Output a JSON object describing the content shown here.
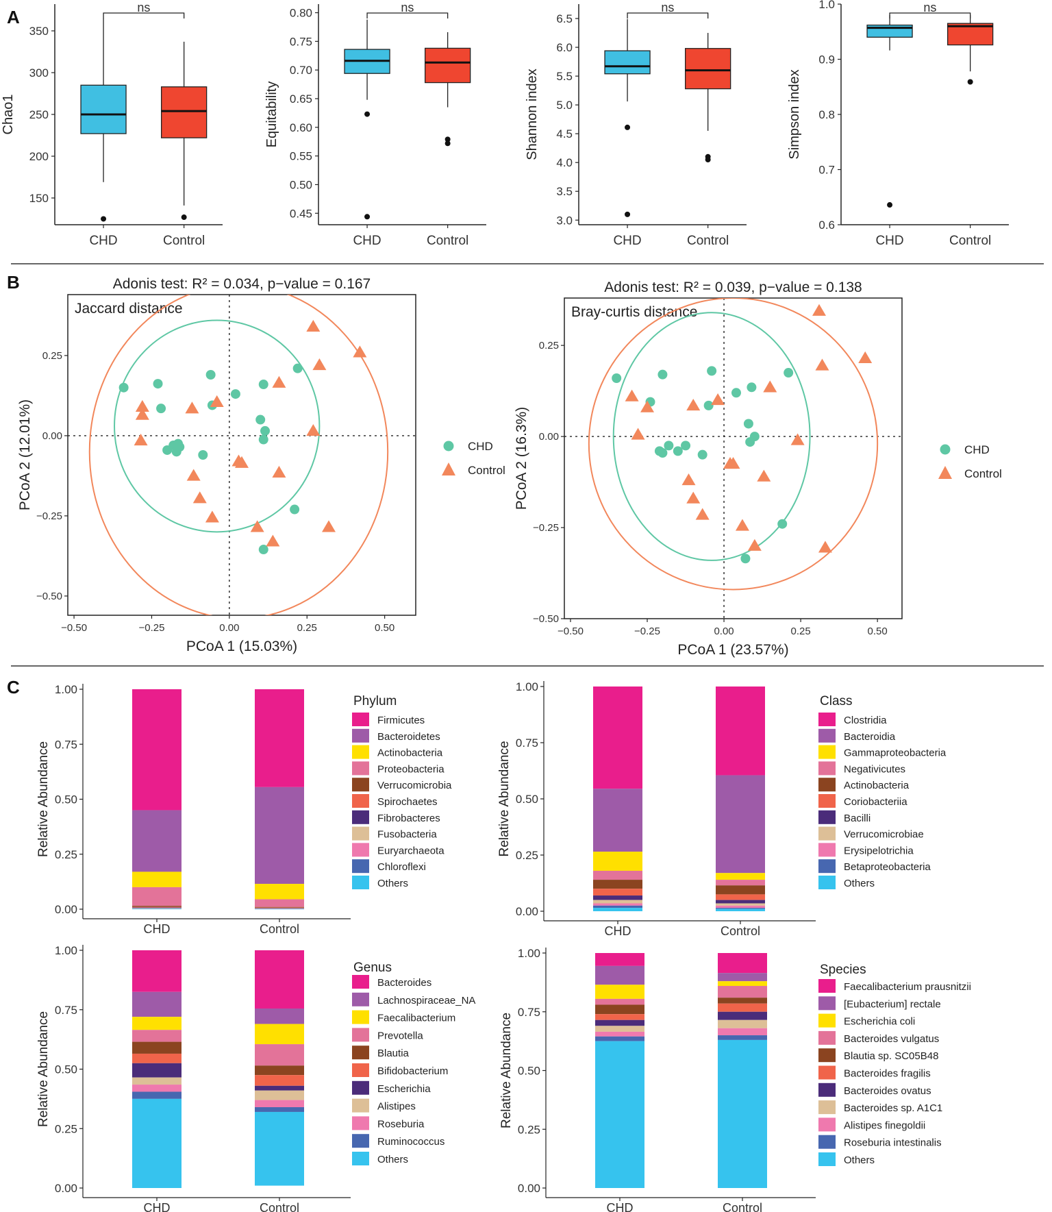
{
  "panels": {
    "a": "A",
    "b": "B",
    "c": "C"
  },
  "colors": {
    "chd_box": "#40BFE2",
    "control_box": "#EF4630",
    "chd_point": "#5EC7A4",
    "control_point": "#F2875B",
    "chd_ellipse": "#5EC7A4",
    "control_ellipse": "#F2875B"
  },
  "chart_data": [
    {
      "id": "chao1",
      "type": "box",
      "ylabel": "Chao1",
      "categories": [
        "CHD",
        "Control"
      ],
      "ylim": [
        118,
        382
      ],
      "yticks": [
        150,
        200,
        250,
        300,
        350
      ],
      "significance": "ns",
      "boxes": [
        {
          "group": "CHD",
          "min": 169,
          "q1": 227,
          "median": 250,
          "q3": 285,
          "max": 365,
          "outliers": [
            125
          ]
        },
        {
          "group": "Control",
          "min": 141,
          "q1": 222,
          "median": 254,
          "q3": 283,
          "max": 337,
          "outliers": [
            127
          ]
        }
      ]
    },
    {
      "id": "equitability",
      "type": "box",
      "ylabel": "Equitability",
      "categories": [
        "CHD",
        "Control"
      ],
      "ylim": [
        0.43,
        0.815
      ],
      "yticks": [
        0.45,
        0.5,
        0.55,
        0.6,
        0.65,
        0.7,
        0.75,
        0.8
      ],
      "significance": "ns",
      "boxes": [
        {
          "group": "CHD",
          "min": 0.648,
          "q1": 0.694,
          "median": 0.716,
          "q3": 0.736,
          "max": 0.788,
          "outliers": [
            0.623,
            0.444
          ]
        },
        {
          "group": "Control",
          "min": 0.635,
          "q1": 0.678,
          "median": 0.713,
          "q3": 0.738,
          "max": 0.766,
          "outliers": [
            0.579,
            0.572
          ]
        }
      ]
    },
    {
      "id": "shannon",
      "type": "box",
      "ylabel": "Shannon index",
      "categories": [
        "CHD",
        "Control"
      ],
      "ylim": [
        2.92,
        6.75
      ],
      "yticks": [
        3.0,
        3.5,
        4.0,
        4.5,
        5.0,
        5.5,
        6.0,
        6.5
      ],
      "significance": "ns",
      "boxes": [
        {
          "group": "CHD",
          "min": 5.06,
          "q1": 5.54,
          "median": 5.67,
          "q3": 5.94,
          "max": 6.49,
          "outliers": [
            4.61,
            3.1
          ]
        },
        {
          "group": "Control",
          "min": 4.55,
          "q1": 5.28,
          "median": 5.6,
          "q3": 5.98,
          "max": 6.25,
          "outliers": [
            4.1,
            4.05
          ]
        }
      ]
    },
    {
      "id": "simpson",
      "type": "box",
      "ylabel": "Simpson index",
      "categories": [
        "CHD",
        "Control"
      ],
      "ylim": [
        0.6,
        1.0
      ],
      "yticks": [
        0.6,
        0.7,
        0.8,
        0.9,
        1.0
      ],
      "significance": "ns",
      "boxes": [
        {
          "group": "CHD",
          "min": 0.916,
          "q1": 0.94,
          "median": 0.957,
          "q3": 0.962,
          "max": 0.98,
          "outliers": [
            0.636
          ]
        },
        {
          "group": "Control",
          "min": 0.878,
          "q1": 0.926,
          "median": 0.96,
          "q3": 0.965,
          "max": 0.98,
          "outliers": [
            0.859
          ]
        }
      ]
    },
    {
      "id": "pcoa_jaccard",
      "type": "scatter",
      "title": "Adonis test: R² = 0.034, p−value = 0.167",
      "inset_label": "Jaccard distance",
      "xlabel": "PCoA 1 (15.03%)",
      "ylabel": "PCoA 2 (12.01%)",
      "xlim": [
        -0.52,
        0.6
      ],
      "ylim": [
        -0.56,
        0.44
      ],
      "xticks": [
        -0.5,
        -0.25,
        0.0,
        0.25,
        0.5
      ],
      "xtick_labels": [
        "−0.50",
        "−0.25",
        "0.00",
        "0.25",
        "0.50"
      ],
      "yticks": [
        -0.5,
        -0.25,
        0.0,
        0.25
      ],
      "ytick_labels": [
        "−0.50",
        "−0.25",
        "0.00",
        "0.25"
      ],
      "legend": [
        "CHD",
        "Control"
      ],
      "series": [
        {
          "name": "CHD",
          "marker": "circle",
          "x": [
            -0.34,
            -0.23,
            -0.22,
            -0.06,
            -0.055,
            0.02,
            0.11,
            0.22,
            0.1,
            0.115,
            0.11,
            -0.2,
            -0.18,
            -0.17,
            -0.165,
            -0.16,
            -0.085,
            0.21,
            0.11
          ],
          "y": [
            0.15,
            0.162,
            0.085,
            0.19,
            0.095,
            0.13,
            0.16,
            0.21,
            0.05,
            0.015,
            -0.012,
            -0.045,
            -0.03,
            -0.05,
            -0.025,
            -0.035,
            -0.06,
            -0.23,
            -0.355
          ]
        },
        {
          "name": "Control",
          "marker": "triangle",
          "x": [
            -0.28,
            -0.28,
            -0.285,
            -0.12,
            -0.04,
            0.27,
            0.29,
            0.42,
            0.16,
            0.27,
            0.03,
            0.04,
            0.16,
            -0.115,
            -0.095,
            -0.055,
            0.09,
            0.14,
            0.32
          ],
          "y": [
            0.09,
            0.065,
            -0.015,
            0.085,
            0.105,
            0.34,
            0.22,
            0.26,
            0.165,
            0.015,
            -0.08,
            -0.085,
            -0.115,
            -0.125,
            -0.195,
            -0.255,
            -0.285,
            -0.33,
            -0.285
          ]
        }
      ],
      "ellipses": [
        {
          "group": "CHD",
          "cx": -0.04,
          "cy": 0.03,
          "rx": 0.33,
          "ry": 0.33
        },
        {
          "group": "Control",
          "cx": 0.03,
          "cy": -0.05,
          "rx": 0.48,
          "ry": 0.52
        }
      ]
    },
    {
      "id": "pcoa_braycurtis",
      "type": "scatter",
      "title": "Adonis test: R² = 0.039, p−value = 0.138",
      "inset_label": "Bray-curtis distance",
      "xlabel": "PCoA 1 (23.57%)",
      "ylabel": "PCoA 2 (16.3%)",
      "xlim": [
        -0.52,
        0.58
      ],
      "ylim": [
        -0.5,
        0.38
      ],
      "xticks": [
        -0.5,
        -0.25,
        0.0,
        0.25,
        0.5
      ],
      "xtick_labels": [
        "−0.50",
        "−0.25",
        "0.00",
        "0.25",
        "0.50"
      ],
      "yticks": [
        -0.5,
        -0.25,
        0.0,
        0.25
      ],
      "ytick_labels": [
        "−0.50",
        "−0.25",
        "0.00",
        "0.25"
      ],
      "legend": [
        "CHD",
        "Control"
      ],
      "series": [
        {
          "name": "CHD",
          "marker": "circle",
          "x": [
            -0.35,
            -0.24,
            -0.2,
            -0.04,
            -0.05,
            0.04,
            0.09,
            0.21,
            0.08,
            0.1,
            0.085,
            -0.21,
            -0.2,
            -0.18,
            -0.15,
            -0.125,
            -0.07,
            0.19,
            0.07
          ],
          "y": [
            0.16,
            0.095,
            0.17,
            0.18,
            0.085,
            0.12,
            0.135,
            0.175,
            0.035,
            0.0,
            -0.015,
            -0.04,
            -0.045,
            -0.025,
            -0.04,
            -0.025,
            -0.05,
            -0.24,
            -0.335
          ]
        },
        {
          "name": "Control",
          "marker": "triangle",
          "x": [
            -0.3,
            -0.25,
            -0.28,
            -0.1,
            -0.02,
            0.31,
            0.32,
            0.46,
            0.15,
            0.24,
            0.02,
            0.03,
            0.13,
            -0.115,
            -0.1,
            -0.07,
            0.06,
            0.1,
            0.33
          ],
          "y": [
            0.11,
            0.08,
            0.005,
            0.085,
            0.1,
            0.345,
            0.195,
            0.215,
            0.135,
            -0.01,
            -0.075,
            -0.075,
            -0.11,
            -0.12,
            -0.17,
            -0.215,
            -0.245,
            -0.3,
            -0.305
          ]
        }
      ],
      "ellipses": [
        {
          "group": "CHD",
          "cx": -0.04,
          "cy": 0.0,
          "rx": 0.32,
          "ry": 0.34
        },
        {
          "group": "Control",
          "cx": 0.03,
          "cy": -0.02,
          "rx": 0.47,
          "ry": 0.4
        }
      ]
    },
    {
      "id": "phylum",
      "type": "bar",
      "stacked": true,
      "categories": [
        "CHD",
        "Control"
      ],
      "ylabel": "Relative Abundance",
      "ylim": [
        0,
        1
      ],
      "yticks": [
        0,
        0.25,
        0.5,
        0.75,
        1.0
      ],
      "ytick_labels": [
        "0.00",
        "0.25",
        "0.50",
        "0.75",
        "1.00"
      ],
      "legend_title": "Phylum",
      "series": [
        {
          "name": "Firmicutes",
          "color": "#E91E8C",
          "values": [
            0.55,
            0.445
          ]
        },
        {
          "name": "Bacteroidetes",
          "color": "#9E5BA8",
          "values": [
            0.28,
            0.44
          ]
        },
        {
          "name": "Actinobacteria",
          "color": "#FFE000",
          "values": [
            0.07,
            0.07
          ]
        },
        {
          "name": "Proteobacteria",
          "color": "#E37399",
          "values": [
            0.085,
            0.035
          ]
        },
        {
          "name": "Verrucomicrobia",
          "color": "#8B4420",
          "values": [
            0.005,
            0.003
          ]
        },
        {
          "name": "Spirochaetes",
          "color": "#F0644A",
          "values": [
            0.002,
            0.002
          ]
        },
        {
          "name": "Fibrobacteres",
          "color": "#4B2C7A",
          "values": [
            0.002,
            0.001
          ]
        },
        {
          "name": "Fusobacteria",
          "color": "#DDBF97",
          "values": [
            0.002,
            0.001
          ]
        },
        {
          "name": "Euryarchaeota",
          "color": "#EF79AE",
          "values": [
            0.001,
            0.001
          ]
        },
        {
          "name": "Chloroflexi",
          "color": "#4767B0",
          "values": [
            0.001,
            0.001
          ]
        },
        {
          "name": "Others",
          "color": "#36C3EE",
          "values": [
            0.002,
            0.001
          ]
        }
      ]
    },
    {
      "id": "class",
      "type": "bar",
      "stacked": true,
      "categories": [
        "CHD",
        "Control"
      ],
      "ylabel": "Relative Abundance",
      "ylim": [
        0,
        1
      ],
      "yticks": [
        0,
        0.25,
        0.5,
        0.75,
        1.0
      ],
      "ytick_labels": [
        "0.00",
        "0.25",
        "0.50",
        "0.75",
        "1.00"
      ],
      "legend_title": "Class",
      "series": [
        {
          "name": "Clostridia",
          "color": "#E91E8C",
          "values": [
            0.455,
            0.395
          ]
        },
        {
          "name": "Bacteroidia",
          "color": "#9E5BA8",
          "values": [
            0.28,
            0.435
          ]
        },
        {
          "name": "Gammaproteobacteria",
          "color": "#FFE000",
          "values": [
            0.085,
            0.03
          ]
        },
        {
          "name": "Negativicutes",
          "color": "#E37399",
          "values": [
            0.04,
            0.025
          ]
        },
        {
          "name": "Actinobacteria",
          "color": "#8B4420",
          "values": [
            0.04,
            0.04
          ]
        },
        {
          "name": "Coriobacteriia",
          "color": "#F0644A",
          "values": [
            0.03,
            0.025
          ]
        },
        {
          "name": "Bacilli",
          "color": "#4B2C7A",
          "values": [
            0.02,
            0.015
          ]
        },
        {
          "name": "Verrucomicrobiae",
          "color": "#DDBF97",
          "values": [
            0.015,
            0.01
          ]
        },
        {
          "name": "Erysipelotrichia",
          "color": "#EF79AE",
          "values": [
            0.01,
            0.01
          ]
        },
        {
          "name": "Betaproteobacteria",
          "color": "#4767B0",
          "values": [
            0.01,
            0.005
          ]
        },
        {
          "name": "Others",
          "color": "#36C3EE",
          "values": [
            0.015,
            0.01
          ]
        }
      ]
    },
    {
      "id": "genus",
      "type": "bar",
      "stacked": true,
      "categories": [
        "CHD",
        "Control"
      ],
      "ylabel": "Relative Abundance",
      "ylim": [
        0,
        1
      ],
      "yticks": [
        0,
        0.25,
        0.5,
        0.75,
        1.0
      ],
      "ytick_labels": [
        "0.00",
        "0.25",
        "0.50",
        "0.75",
        "1.00"
      ],
      "legend_title": "Genus",
      "series": [
        {
          "name": "Bacteroides",
          "color": "#E91E8C",
          "values": [
            0.175,
            0.245
          ]
        },
        {
          "name": "Lachnospiraceae_NA",
          "color": "#9E5BA8",
          "values": [
            0.105,
            0.065
          ]
        },
        {
          "name": "Faecalibacterium",
          "color": "#FFE000",
          "values": [
            0.055,
            0.085
          ]
        },
        {
          "name": "Prevotella",
          "color": "#E37399",
          "values": [
            0.05,
            0.09
          ]
        },
        {
          "name": "Blautia",
          "color": "#8B4420",
          "values": [
            0.05,
            0.04
          ]
        },
        {
          "name": "Bifidobacterium",
          "color": "#F0644A",
          "values": [
            0.04,
            0.045
          ]
        },
        {
          "name": "Escherichia",
          "color": "#4B2C7A",
          "values": [
            0.06,
            0.02
          ]
        },
        {
          "name": "Alistipes",
          "color": "#DDBF97",
          "values": [
            0.03,
            0.04
          ]
        },
        {
          "name": "Roseburia",
          "color": "#EF79AE",
          "values": [
            0.03,
            0.03
          ]
        },
        {
          "name": "Ruminococcus",
          "color": "#4767B0",
          "values": [
            0.03,
            0.02
          ]
        },
        {
          "name": "Others",
          "color": "#36C3EE",
          "values": [
            0.375,
            0.31
          ]
        }
      ]
    },
    {
      "id": "species",
      "type": "bar",
      "stacked": true,
      "categories": [
        "CHD",
        "Control"
      ],
      "ylabel": "Relative Abundance",
      "ylim": [
        0,
        1
      ],
      "yticks": [
        0,
        0.25,
        0.5,
        0.75,
        1.0
      ],
      "ytick_labels": [
        "0.00",
        "0.25",
        "0.50",
        "0.75",
        "1.00"
      ],
      "legend_title": "Species",
      "series": [
        {
          "name": "Faecalibacterium prausnitzii",
          "color": "#E91E8C",
          "values": [
            0.055,
            0.085
          ]
        },
        {
          "name": "[Eubacterium] rectale",
          "color": "#9E5BA8",
          "values": [
            0.08,
            0.035
          ]
        },
        {
          "name": "Escherichia coli",
          "color": "#FFE000",
          "values": [
            0.06,
            0.02
          ]
        },
        {
          "name": "Bacteroides vulgatus",
          "color": "#E37399",
          "values": [
            0.025,
            0.05
          ]
        },
        {
          "name": "Blautia sp. SC05B48",
          "color": "#8B4420",
          "values": [
            0.04,
            0.025
          ]
        },
        {
          "name": "Bacteroides fragilis",
          "color": "#F0644A",
          "values": [
            0.025,
            0.035
          ]
        },
        {
          "name": "Bacteroides ovatus",
          "color": "#4B2C7A",
          "values": [
            0.025,
            0.035
          ]
        },
        {
          "name": "Bacteroides sp. A1C1",
          "color": "#DDBF97",
          "values": [
            0.025,
            0.035
          ]
        },
        {
          "name": "Alistipes finegoldii",
          "color": "#EF79AE",
          "values": [
            0.02,
            0.03
          ]
        },
        {
          "name": "Roseburia intestinalis",
          "color": "#4767B0",
          "values": [
            0.02,
            0.02
          ]
        },
        {
          "name": "Others",
          "color": "#36C3EE",
          "values": [
            0.625,
            0.63
          ]
        }
      ]
    }
  ]
}
